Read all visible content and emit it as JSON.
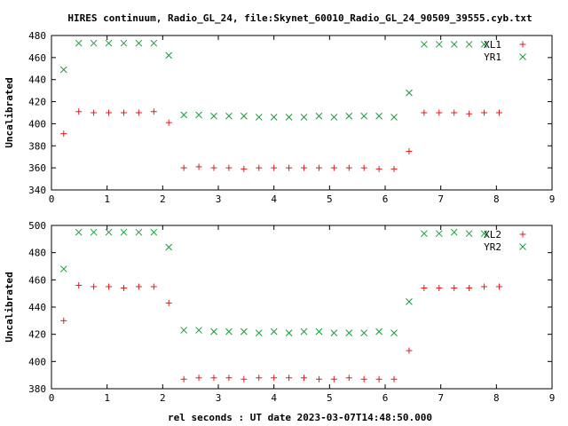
{
  "title": "HIRES continuum, Radio_GL_24, file:Skynet_60010_Radio_GL_24_90509_39555.cyb.txt",
  "xlabel": "rel seconds : UT date 2023-03-07T14:48:50.000",
  "colors": {
    "red": "#e41a1c",
    "green": "#1a9c3a",
    "axis": "#000000"
  },
  "chart_data": [
    {
      "type": "scatter",
      "ylabel": "Uncalibrated",
      "xlim": [
        0,
        9
      ],
      "ylim": [
        340,
        480
      ],
      "xticks": [
        0,
        1,
        2,
        3,
        4,
        5,
        6,
        7,
        8,
        9
      ],
      "yticks": [
        340,
        360,
        380,
        400,
        420,
        440,
        460,
        480
      ],
      "legend": "top-right",
      "series": [
        {
          "name": "XL1",
          "marker": "plus",
          "color": "#e41a1c",
          "x": [
            0.22,
            0.49,
            0.76,
            1.03,
            1.3,
            1.57,
            1.84,
            2.11,
            2.38,
            2.65,
            2.92,
            3.19,
            3.46,
            3.73,
            4.0,
            4.27,
            4.54,
            4.81,
            5.08,
            5.35,
            5.62,
            5.89,
            6.16,
            6.43,
            6.7,
            6.97,
            7.24,
            7.51,
            7.78,
            8.05
          ],
          "y": [
            391,
            411,
            410,
            410,
            410,
            410,
            411,
            401,
            360,
            361,
            360,
            360,
            359,
            360,
            360,
            360,
            360,
            360,
            360,
            360,
            360,
            359,
            359,
            375,
            410,
            410,
            410,
            409,
            410,
            410
          ]
        },
        {
          "name": "YR1",
          "marker": "cross",
          "color": "#1a9c3a",
          "x": [
            0.22,
            0.49,
            0.76,
            1.03,
            1.3,
            1.57,
            1.84,
            2.11,
            2.38,
            2.65,
            2.92,
            3.19,
            3.46,
            3.73,
            4.0,
            4.27,
            4.54,
            4.81,
            5.08,
            5.35,
            5.62,
            5.89,
            6.16,
            6.43,
            6.7,
            6.97,
            7.24,
            7.51,
            7.78
          ],
          "y": [
            449,
            473,
            473,
            473,
            473,
            473,
            473,
            462,
            408,
            408,
            407,
            407,
            407,
            406,
            406,
            406,
            406,
            407,
            406,
            407,
            407,
            407,
            406,
            428,
            472,
            472,
            472,
            472,
            472
          ]
        }
      ]
    },
    {
      "type": "scatter",
      "ylabel": "Uncalibrated",
      "xlim": [
        0,
        9
      ],
      "ylim": [
        380,
        500
      ],
      "xticks": [
        0,
        1,
        2,
        3,
        4,
        5,
        6,
        7,
        8,
        9
      ],
      "yticks": [
        380,
        400,
        420,
        440,
        460,
        480,
        500
      ],
      "legend": "top-right",
      "series": [
        {
          "name": "XL2",
          "marker": "plus",
          "color": "#e41a1c",
          "x": [
            0.22,
            0.49,
            0.76,
            1.03,
            1.3,
            1.57,
            1.84,
            2.11,
            2.38,
            2.65,
            2.92,
            3.19,
            3.46,
            3.73,
            4.0,
            4.27,
            4.54,
            4.81,
            5.08,
            5.35,
            5.62,
            5.89,
            6.16,
            6.43,
            6.7,
            6.97,
            7.24,
            7.51,
            7.78,
            8.05
          ],
          "y": [
            430,
            456,
            455,
            455,
            454,
            455,
            455,
            443,
            387,
            388,
            388,
            388,
            387,
            388,
            388,
            388,
            388,
            387,
            387,
            388,
            387,
            387,
            387,
            408,
            454,
            454,
            454,
            454,
            455,
            455
          ]
        },
        {
          "name": "YR2",
          "marker": "cross",
          "color": "#1a9c3a",
          "x": [
            0.22,
            0.49,
            0.76,
            1.03,
            1.3,
            1.57,
            1.84,
            2.11,
            2.38,
            2.65,
            2.92,
            3.19,
            3.46,
            3.73,
            4.0,
            4.27,
            4.54,
            4.81,
            5.08,
            5.35,
            5.62,
            5.89,
            6.16,
            6.43,
            6.7,
            6.97,
            7.24,
            7.51,
            7.78
          ],
          "y": [
            468,
            495,
            495,
            495,
            495,
            495,
            495,
            484,
            423,
            423,
            422,
            422,
            422,
            421,
            422,
            421,
            422,
            422,
            421,
            421,
            421,
            422,
            421,
            444,
            494,
            494,
            495,
            494,
            494
          ]
        }
      ]
    }
  ]
}
